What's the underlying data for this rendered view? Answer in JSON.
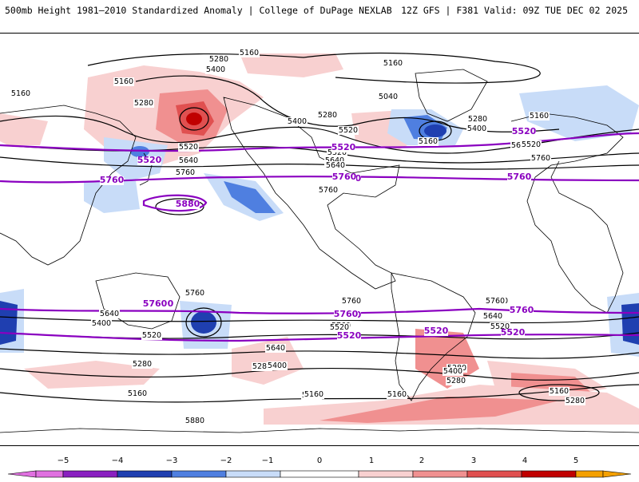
{
  "header": {
    "title": "500mb Height 1981–2010 Standardized Anomaly | College of DuPage NEXLAB",
    "run_info": "12Z GFS | F381 Valid: 09Z TUE DEC 02 2025"
  },
  "colors": {
    "anom_neg5": "#e070e0",
    "anom_neg4": "#8a1fc0",
    "anom_neg3": "#1f3fb0",
    "anom_neg2": "#4f7fe0",
    "anom_neg1": "#c8dcf8",
    "anom_pos1": "#f8d0d0",
    "anom_pos2": "#f09090",
    "anom_pos3": "#e05050",
    "anom_pos4": "#c00000",
    "anom_pos5": "#f4a000",
    "contour": "#000000",
    "highlight_contour": "#8a00c0",
    "coastline": "#000000"
  },
  "legend": {
    "ticks": [
      "−5",
      "−4",
      "−3",
      "−2",
      "−1",
      "0",
      "1",
      "2",
      "3",
      "4",
      "5"
    ]
  },
  "contour_labels": {
    "black": [
      "5160",
      "5280",
      "5400",
      "5160",
      "5160",
      "5280",
      "5160",
      "5280",
      "5040",
      "5400",
      "5280",
      "5160",
      "5400",
      "5520",
      "5160",
      "5520",
      "5640",
      "5520",
      "5640",
      "5760",
      "5760",
      "5640",
      "5520",
      "5640",
      "5760",
      "5760",
      "5760",
      "5640",
      "5880",
      "5160",
      "5280",
      "5760",
      "5640",
      "5400",
      "5520",
      "5280",
      "5160",
      "5760",
      "5520",
      "5640",
      "5400",
      "5280",
      "5160",
      "5160",
      "5760",
      "5640",
      "5520",
      "5400",
      "5280",
      "5160",
      "5280"
    ],
    "highlight": [
      "5520",
      "5520",
      "5760",
      "5880",
      "5520",
      "5760",
      "5520",
      "5760",
      "5760",
      "5520",
      "5760",
      "5520",
      "5760",
      "5520",
      "5760",
      "5520"
    ]
  }
}
